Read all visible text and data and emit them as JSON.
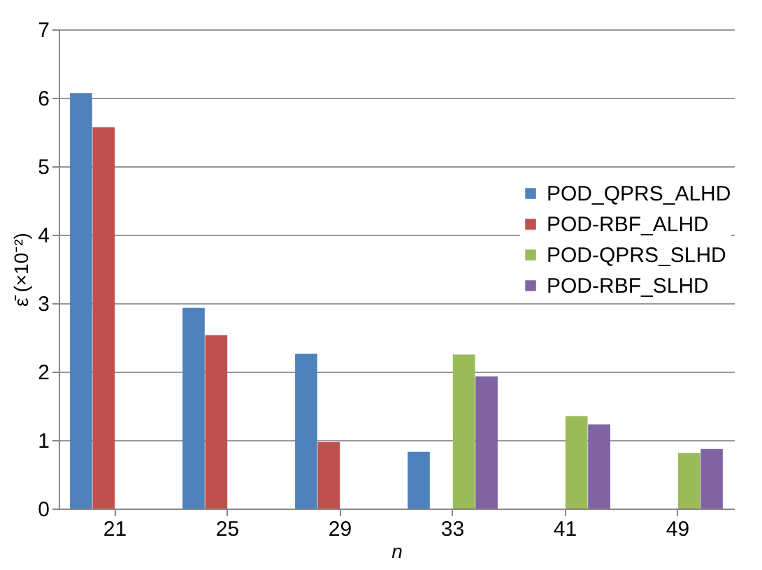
{
  "chart_data": {
    "type": "bar",
    "xlabel": "n",
    "ylabel": "ε̄ (×10⁻²)",
    "categories": [
      "21",
      "25",
      "29",
      "33",
      "41",
      "49"
    ],
    "series": [
      {
        "name": "POD_QPRS_ALHD",
        "color": "#4f81bd",
        "values": [
          6.07,
          2.93,
          2.26,
          0.83,
          null,
          null
        ]
      },
      {
        "name": "POD-RBF_ALHD",
        "color": "#c0504d",
        "values": [
          5.57,
          2.53,
          0.97,
          null,
          null,
          null
        ]
      },
      {
        "name": "POD-QPRS_SLHD",
        "color": "#9bbb59",
        "values": [
          null,
          null,
          null,
          2.25,
          1.35,
          0.81
        ]
      },
      {
        "name": "POD-RBF_SLHD",
        "color": "#8064a2",
        "values": [
          null,
          null,
          null,
          1.93,
          1.23,
          0.87
        ]
      }
    ],
    "ylim": [
      0,
      7
    ],
    "yticks": [
      0,
      1,
      2,
      3,
      4,
      5,
      6,
      7
    ],
    "grid": "y",
    "legend": "right"
  }
}
